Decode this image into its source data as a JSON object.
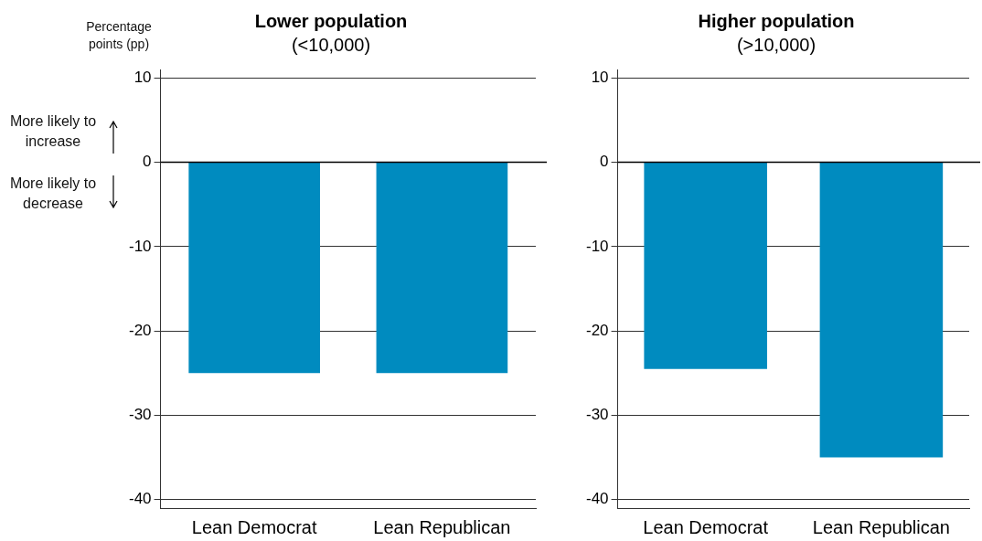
{
  "chart_data": [
    {
      "type": "bar",
      "title": "Lower population",
      "subtitle": "(<10,000)",
      "ylabel": "Percentage points (pp)",
      "annotations": [
        "More likely to increase",
        "More likely to decrease"
      ],
      "categories": [
        "Lean Democrat",
        "Lean Republican"
      ],
      "values": [
        -25,
        -25
      ],
      "color": "#008bbf",
      "ylim": [
        -41,
        11
      ],
      "yticks": [
        -40,
        -30,
        -20,
        -10,
        0,
        10
      ],
      "grid": "y",
      "legend": false,
      "ref_lines": [
        {
          "axis": "y",
          "value": 0,
          "color": "#000000"
        }
      ]
    },
    {
      "type": "bar",
      "title": "Higher population",
      "subtitle": "(>10,000)",
      "categories": [
        "Lean Democrat",
        "Lean Republican"
      ],
      "values": [
        -24.5,
        -35
      ],
      "color": "#008bbf",
      "ylim": [
        -41,
        11
      ],
      "yticks": [
        -40,
        -30,
        -20,
        -10,
        0,
        10
      ],
      "grid": "y",
      "legend": false,
      "ref_lines": [
        {
          "axis": "y",
          "value": 0,
          "color": "#000000"
        }
      ]
    }
  ]
}
